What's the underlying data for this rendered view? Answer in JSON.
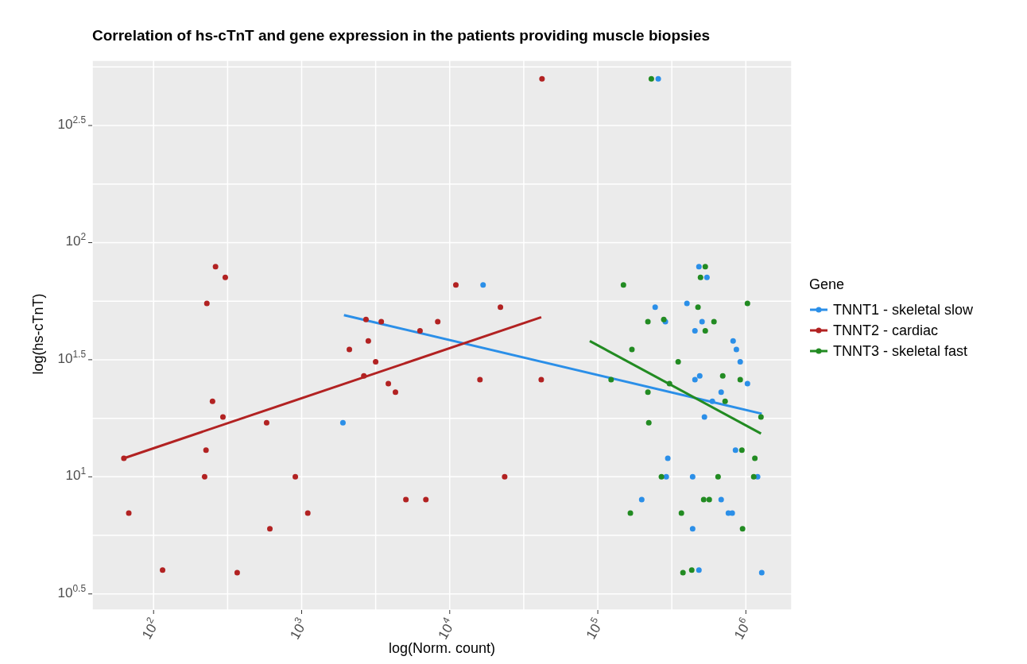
{
  "chart_data": {
    "type": "scatter",
    "title": "Correlation of hs-cTnT and gene expression in the patients providing muscle biopsies",
    "xlabel": "log(Norm. count)",
    "ylabel": "log(hs-cTnT)",
    "legend_title": "Gene",
    "legend": "right",
    "grid": true,
    "log": "xy",
    "xlim": [
      38.5,
      2040000
    ],
    "ylim": [
      2.7,
      600
    ],
    "xticks": [
      {
        "value": 100,
        "label": "10$^{2}$"
      },
      {
        "value": 316.2,
        "label": null
      },
      {
        "value": 1000,
        "label": "10$^{3}$"
      },
      {
        "value": 3162,
        "label": null
      },
      {
        "value": 10000,
        "label": "10$^{4}$"
      },
      {
        "value": 31623,
        "label": null
      },
      {
        "value": 100000,
        "label": "10$^{5}$"
      },
      {
        "value": 316228,
        "label": null
      },
      {
        "value": 1000000,
        "label": "10$^{6}$"
      }
    ],
    "yticks": [
      {
        "value": 3.162,
        "label": "10$^{0.5}$"
      },
      {
        "value": 5.623,
        "label": null
      },
      {
        "value": 10,
        "label": "10$^{1}$"
      },
      {
        "value": 17.78,
        "label": null
      },
      {
        "value": 31.62,
        "label": "10$^{1.5}$"
      },
      {
        "value": 56.23,
        "label": null
      },
      {
        "value": 100,
        "label": "10$^{2}$"
      },
      {
        "value": 177.8,
        "label": null
      },
      {
        "value": 316.2,
        "label": "10$^{2.5}$"
      },
      {
        "value": 562.3,
        "label": null
      }
    ],
    "series": [
      {
        "name": "TNNT1 - skeletal slow",
        "marker": "circle",
        "color": "#2b8fe8",
        "x": [
          1900,
          16800,
          256000,
          482000,
          546000,
          244000,
          400000,
          286000,
          506000,
          453000,
          820000,
          863000,
          916000,
          488000,
          453000,
          1025000,
          681000,
          594000,
          525000,
          851000,
          297000,
          290000,
          437000,
          1200000,
          198000,
          681000,
          762000,
          809000,
          437000,
          482000,
          1280000
        ],
        "values": [
          17,
          66,
          500,
          79,
          71,
          53,
          55,
          46,
          46,
          42,
          38,
          35,
          31,
          27,
          26,
          25,
          23,
          21,
          18,
          13,
          12,
          10,
          10,
          10,
          8,
          8,
          7,
          7,
          6,
          4,
          3.9
        ]
      },
      {
        "name": "TNNT2 - cardiac",
        "marker": "circle",
        "color": "#b22222",
        "x": [
          262,
          305,
          229,
          2720,
          3450,
          6300,
          8300,
          11000,
          2820,
          2100,
          3160,
          2630,
          3850,
          4300,
          250,
          294,
          580,
          63,
          226,
          221,
          906,
          68,
          1100,
          610,
          115,
          367,
          5060,
          6900,
          42000,
          22000,
          16000,
          41500,
          23500
        ],
        "values": [
          79,
          71,
          55,
          47,
          46,
          42,
          46,
          66,
          38,
          35,
          31,
          27,
          25,
          23,
          21,
          18,
          17,
          12,
          13,
          10,
          10,
          7,
          7,
          6,
          4,
          3.9,
          8,
          8,
          500,
          53,
          26,
          26,
          10
        ]
      },
      {
        "name": "TNNT3 - skeletal fast",
        "marker": "circle",
        "color": "#228b22",
        "x": [
          230000,
          532000,
          494000,
          149000,
          1025000,
          475000,
          218000,
          279000,
          609000,
          532000,
          170000,
          349000,
          698000,
          916000,
          123000,
          305000,
          218000,
          724000,
          1265000,
          221000,
          940000,
          1150000,
          269000,
          649000,
          1130000,
          519000,
          566000,
          166000,
          367000,
          950000,
          376000,
          431000
        ],
        "values": [
          500,
          79,
          71,
          66,
          55,
          53,
          46,
          47,
          46,
          42,
          35,
          31,
          27,
          26,
          26,
          25,
          23,
          21,
          18,
          17,
          13,
          12,
          10,
          10,
          10,
          8,
          8,
          7,
          7,
          6,
          3.9,
          4
        ]
      },
      {
        "type": "line",
        "marker": "none",
        "color": "#2b8fe8",
        "line_style": "solid",
        "x": [
          1930,
          1280000
        ],
        "values": [
          49,
          18.6
        ]
      },
      {
        "type": "line",
        "marker": "none",
        "color": "#b22222",
        "line_style": "solid",
        "x": [
          63,
          41500
        ],
        "values": [
          12,
          48
        ]
      },
      {
        "type": "line",
        "marker": "none",
        "color": "#228b22",
        "line_style": "solid",
        "x": [
          88300,
          1265000
        ],
        "values": [
          38,
          15.3
        ]
      }
    ]
  }
}
